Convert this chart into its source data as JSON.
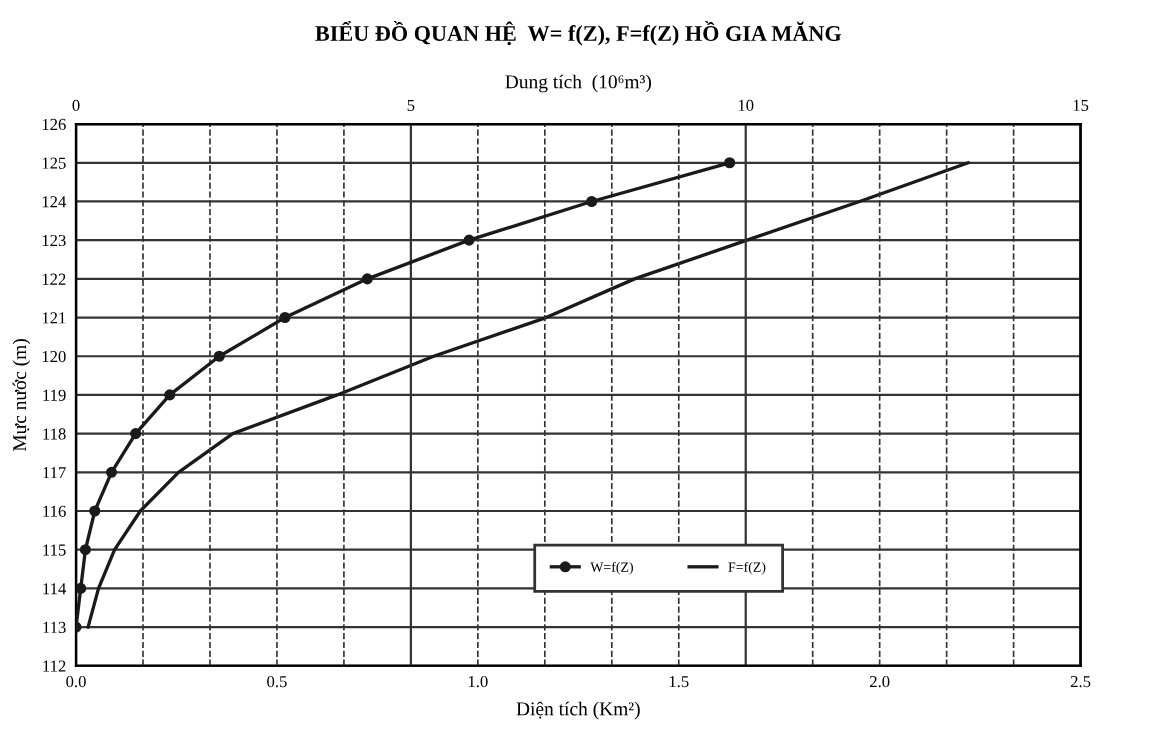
{
  "chart_data": {
    "type": "line",
    "title": "BIỂU ĐỒ QUAN HỆ  W= f(Z), F=f(Z) HỒ GIA MĂNG",
    "xlabel": "Diện tích (Km²)",
    "x2label": "Dung tích  (10⁶m³)",
    "ylabel": "Mực nước (m)",
    "xlim": [
      0,
      2.5
    ],
    "xticks": [
      {
        "value": 0,
        "label": "0.0"
      },
      0.5,
      {
        "value": 1,
        "label": "1.0"
      },
      1.5,
      {
        "value": 2,
        "label": "2.0"
      },
      2.5
    ],
    "x2lim": [
      0,
      15
    ],
    "x2ticks": [
      0,
      {
        "value": 1,
        "label": null
      },
      {
        "value": 2,
        "label": null
      },
      {
        "value": 3,
        "label": null
      },
      {
        "value": 4,
        "label": null
      },
      5,
      {
        "value": 6,
        "label": null
      },
      {
        "value": 7,
        "label": null
      },
      {
        "value": 8,
        "label": null
      },
      {
        "value": 9,
        "label": null
      },
      10,
      {
        "value": 11,
        "label": null
      },
      {
        "value": 12,
        "label": null
      },
      {
        "value": 13,
        "label": null
      },
      {
        "value": 14,
        "label": null
      },
      15
    ],
    "ylim": [
      112,
      126
    ],
    "yticks": [
      112,
      113,
      114,
      115,
      116,
      117,
      118,
      119,
      120,
      121,
      122,
      123,
      124,
      125,
      126
    ],
    "grid": true,
    "legend": "bottom right",
    "series": [
      {
        "name": "W=f(Z)",
        "color": "#1a1a1a",
        "axis": "x2",
        "marker": "circle",
        "x": [
          0.0,
          0.07,
          0.14,
          0.28,
          0.53,
          0.89,
          1.4,
          2.14,
          3.12,
          4.35,
          5.87,
          7.7,
          9.76
        ],
        "values": [
          113,
          114,
          115,
          116,
          117,
          118,
          119,
          120,
          121,
          122,
          123,
          124,
          125
        ]
      },
      {
        "name": "F=f(Z)",
        "color": "#1a1a1a",
        "marker": "none",
        "x": [
          0.03,
          0.056,
          0.096,
          0.16,
          0.255,
          0.39,
          0.65,
          0.89,
          1.17,
          1.39,
          1.67,
          1.95,
          2.22
        ],
        "values": [
          113,
          114,
          115,
          116,
          117,
          118,
          119,
          120,
          121,
          122,
          123,
          124,
          125
        ]
      }
    ]
  }
}
